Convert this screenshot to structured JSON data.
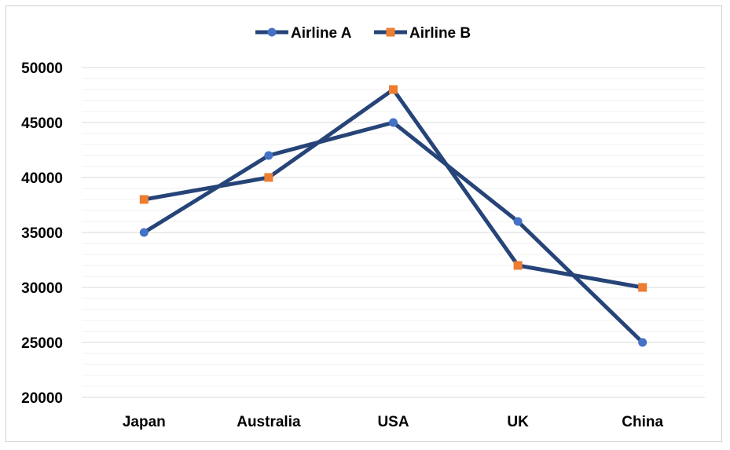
{
  "chart_data": {
    "type": "line",
    "title": "",
    "xlabel": "",
    "ylabel": "",
    "categories": [
      "Japan",
      "Australia",
      "USA",
      "UK",
      "China"
    ],
    "ylim": [
      20000,
      50000
    ],
    "y_ticks": [
      "50000",
      "45000",
      "40000",
      "35000",
      "30000",
      "25000",
      "20000"
    ],
    "grid": true,
    "legend_position": "top-center",
    "series": [
      {
        "name": "Airline A",
        "values": [
          35000,
          42000,
          45000,
          36000,
          25000
        ],
        "marker": "circle",
        "line_color": "#264478",
        "marker_color": "#4472c4"
      },
      {
        "name": "Airline B",
        "values": [
          38000,
          40000,
          48000,
          32000,
          30000
        ],
        "marker": "square",
        "line_color": "#264478",
        "marker_color": "#ed7d31"
      }
    ]
  }
}
